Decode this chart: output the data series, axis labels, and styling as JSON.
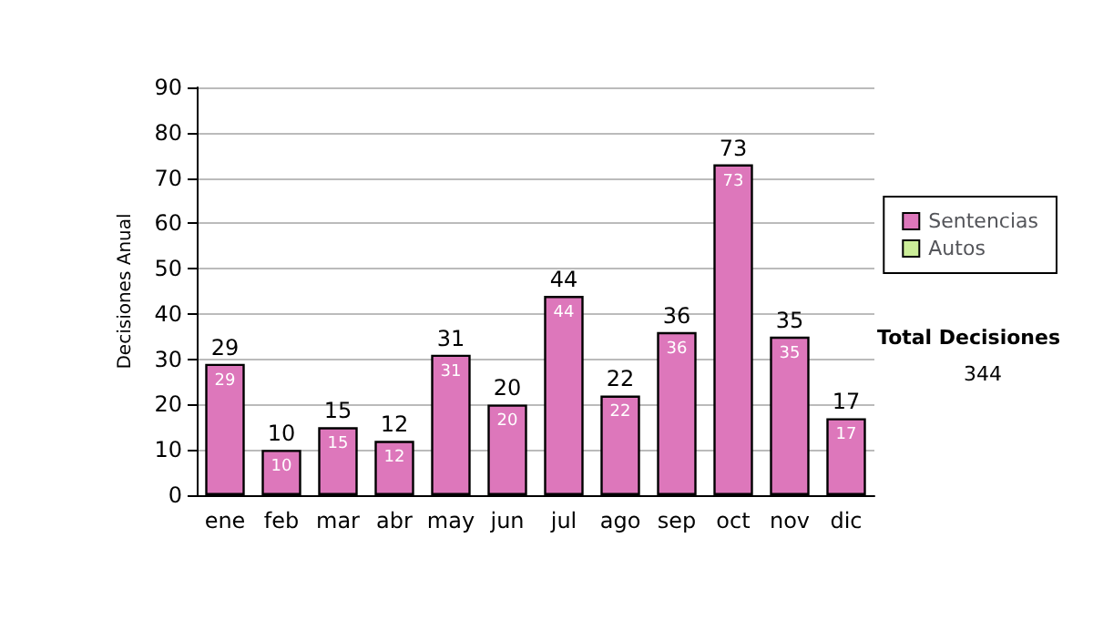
{
  "chart_data": {
    "type": "bar",
    "ylabel": "Decisiones Anual",
    "categories": [
      "ene",
      "feb",
      "mar",
      "abr",
      "may",
      "jun",
      "jul",
      "ago",
      "sep",
      "oct",
      "nov",
      "dic"
    ],
    "series": [
      {
        "name": "Sentencias",
        "color": "#dd77bb",
        "values": [
          29,
          10,
          15,
          12,
          31,
          20,
          44,
          22,
          36,
          73,
          35,
          17
        ]
      },
      {
        "name": "Autos",
        "color": "#ccee99",
        "values": [
          null,
          null,
          null,
          null,
          null,
          null,
          null,
          null,
          null,
          null,
          null,
          null
        ]
      }
    ],
    "stacked": true,
    "data_labels": true,
    "totals": [
      "29",
      "10",
      "15",
      "12",
      "31",
      "20",
      "44",
      "22",
      "36",
      "73",
      "35",
      "17"
    ],
    "ylim": [
      0,
      90
    ],
    "yticks": [
      0,
      10,
      20,
      30,
      40,
      50,
      60,
      70,
      80,
      90
    ],
    "grid": "y",
    "legend": "right",
    "annotations": [
      "Total Decisiones",
      "344"
    ]
  }
}
